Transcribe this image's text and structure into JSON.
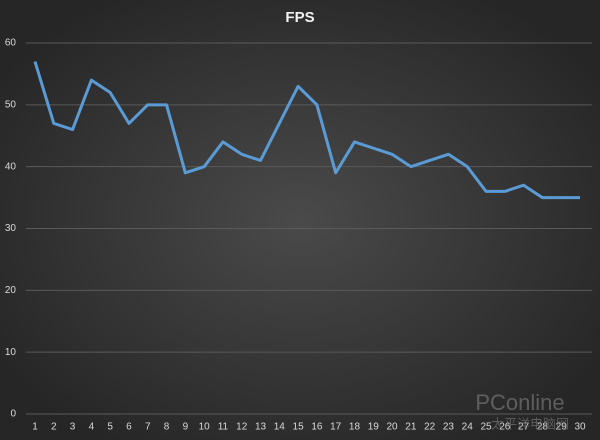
{
  "chart_data": {
    "type": "line",
    "title": "FPS",
    "categories": [
      1,
      2,
      3,
      4,
      5,
      6,
      7,
      8,
      9,
      10,
      11,
      12,
      13,
      14,
      15,
      16,
      17,
      18,
      19,
      20,
      21,
      22,
      23,
      24,
      25,
      26,
      27,
      28,
      29,
      30
    ],
    "series": [
      {
        "name": "FPS",
        "color": "#5b9bd5",
        "values": [
          57,
          47,
          46,
          54,
          52,
          47,
          50,
          50,
          39,
          40,
          44,
          42,
          41,
          47,
          53,
          50,
          39,
          44,
          43,
          42,
          40,
          41,
          42,
          40,
          36,
          36,
          37,
          35,
          35,
          35
        ]
      }
    ],
    "ylim": [
      0,
      60
    ],
    "yticks": [
      0,
      10,
      20,
      30,
      40,
      50,
      60
    ],
    "grid": true,
    "watermark": [
      "PConline",
      "太平洋电脑网"
    ]
  }
}
